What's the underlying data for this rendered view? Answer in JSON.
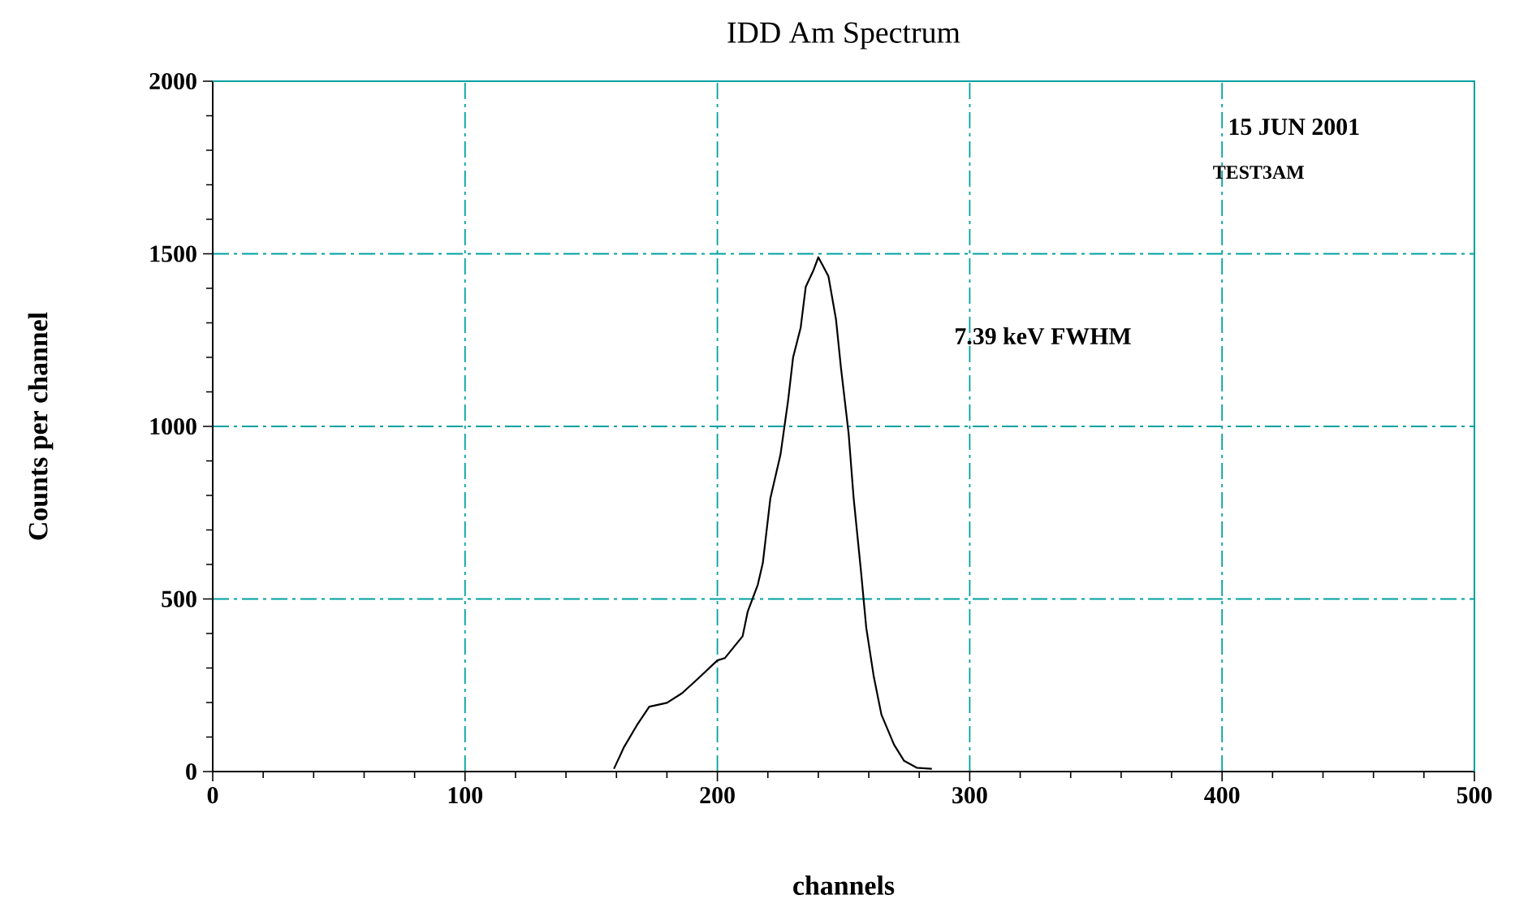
{
  "chart_data": {
    "type": "line",
    "title": "IDD Am Spectrum",
    "xlabel": "channels",
    "ylabel": "Counts per channel",
    "annotations": [
      "15 JUN 2001",
      "TEST3AM",
      "7.39 keV FWHM"
    ],
    "xlim": [
      0,
      500
    ],
    "xticks": [
      0,
      100,
      200,
      300,
      400,
      500
    ],
    "ylim": [
      0,
      2000
    ],
    "yticks": [
      0,
      500,
      1000,
      1500,
      2000
    ],
    "grid": true,
    "marker": "none",
    "line_style": "solid",
    "series": [
      {
        "color": "#000000",
        "x": [
          159,
          163,
          168,
          173,
          180,
          186,
          192,
          200,
          203,
          210,
          212,
          216,
          218,
          221,
          225,
          228,
          230,
          233,
          235,
          238,
          240,
          244,
          247,
          249,
          252,
          254,
          257,
          259,
          262,
          265,
          270,
          274,
          279,
          285
        ],
        "values": [
          8,
          71,
          133,
          188,
          199,
          227,
          267,
          322,
          329,
          392,
          463,
          541,
          604,
          792,
          918,
          1074,
          1200,
          1286,
          1404,
          1451,
          1490,
          1435,
          1310,
          1168,
          980,
          792,
          573,
          416,
          274,
          165,
          78,
          31,
          11,
          8
        ]
      }
    ]
  }
}
